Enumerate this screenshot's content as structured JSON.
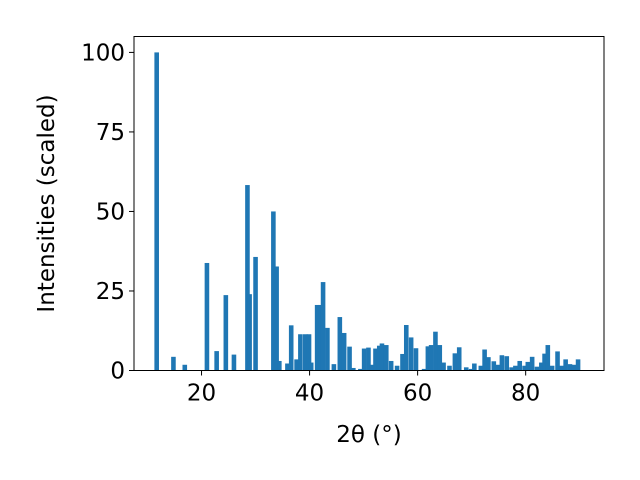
{
  "chart_data": {
    "type": "bar",
    "xlabel": "2θ (°)",
    "ylabel": "Intensities (scaled)",
    "xlim": [
      7.5,
      94.5
    ],
    "ylim": [
      0,
      105
    ],
    "xticks": [
      20,
      40,
      60,
      80
    ],
    "yticks": [
      0,
      25,
      50,
      75,
      100
    ],
    "bar_width": 0.85,
    "color": "#1f77b4",
    "grid": false,
    "x": [
      11.7,
      14.8,
      16.9,
      21.0,
      22.8,
      24.5,
      26.0,
      28.5,
      28.9,
      30.0,
      33.3,
      33.9,
      34.4,
      35.9,
      36.6,
      37.6,
      38.3,
      39.2,
      39.9,
      40.3,
      41.4,
      42.0,
      42.5,
      43.3,
      44.5,
      45.6,
      46.4,
      47.4,
      48.1,
      49.4,
      50.1,
      50.9,
      51.6,
      52.2,
      52.9,
      53.4,
      54.2,
      55.1,
      56.2,
      57.2,
      57.9,
      58.8,
      59.7,
      61.2,
      61.9,
      62.5,
      63.3,
      64.1,
      64.8,
      65.9,
      66.9,
      67.7,
      69.0,
      69.9,
      70.5,
      71.7,
      72.4,
      73.1,
      74.1,
      74.9,
      75.6,
      76.5,
      77.4,
      78.1,
      78.9,
      79.8,
      80.4,
      81.2,
      82.1,
      82.9,
      83.5,
      84.1,
      84.9,
      85.9,
      86.6,
      87.4,
      88.2,
      89.0,
      89.7
    ],
    "values": [
      100,
      4.3,
      1.8,
      33.8,
      6.1,
      23.7,
      5.0,
      58.3,
      24.0,
      35.7,
      50.0,
      32.7,
      3.0,
      2.2,
      14.2,
      3.5,
      11.4,
      11.4,
      11.4,
      2.5,
      20.6,
      20.6,
      27.8,
      13.4,
      2.0,
      16.8,
      11.8,
      7.5,
      0.8,
      0.5,
      6.9,
      7.2,
      1.8,
      6.9,
      7.8,
      8.5,
      8.0,
      3.0,
      1.5,
      5.2,
      14.3,
      10.4,
      7.0,
      0.5,
      7.6,
      8.0,
      12.2,
      8.0,
      2.5,
      1.5,
      5.4,
      7.3,
      1.0,
      0.5,
      2.2,
      1.5,
      6.6,
      4.2,
      2.9,
      1.8,
      4.8,
      4.5,
      1.0,
      1.5,
      3.0,
      1.5,
      2.7,
      4.3,
      1.2,
      2.5,
      5.3,
      8.0,
      1.5,
      6.0,
      1.5,
      3.5,
      2.0,
      1.8,
      3.5
    ]
  }
}
